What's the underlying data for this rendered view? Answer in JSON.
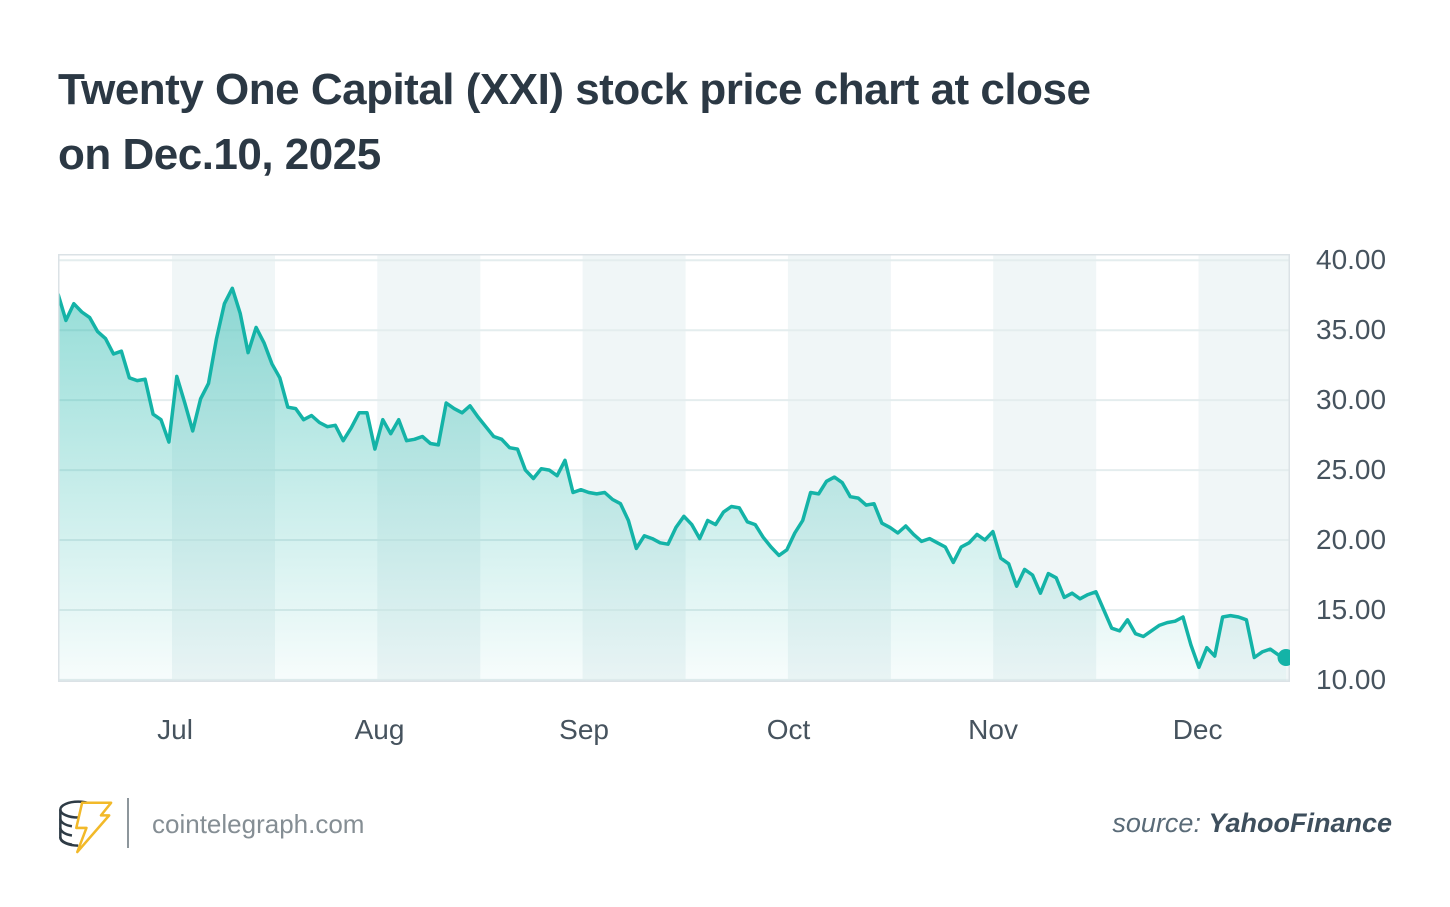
{
  "header": {
    "title_line1": "Twenty One Capital (XXI) stock price chart at close",
    "title_line2": "on Dec.10, 2025",
    "title_color": "#2b3844"
  },
  "chart_data": {
    "type": "area",
    "title": "Twenty One Capital (XXI) stock price chart at close on Dec.10, 2025",
    "xlabel": "",
    "ylabel": "",
    "frequency": "daily close price, late Jun 2025 to Dec 10, 2025",
    "x_ticks": [
      "Jul",
      "Aug",
      "Sep",
      "Oct",
      "Nov",
      "Dec"
    ],
    "y_ticks": [
      "40.00",
      "35.00",
      "30.00",
      "25.00",
      "20.00",
      "15.00",
      "10.00"
    ],
    "y_gridline_values": [
      40,
      35,
      30,
      25,
      20,
      15,
      10
    ],
    "ylim": [
      9.85,
      40.45
    ],
    "grid": "horizontal gridlines with alternating half-month vertical bands",
    "legend_position": "none",
    "end_dot": true,
    "last_value": 11.6,
    "values": [
      37.6,
      35.7,
      36.9,
      36.3,
      35.9,
      34.9,
      34.4,
      33.3,
      33.5,
      31.6,
      31.4,
      31.5,
      29.0,
      28.6,
      27.0,
      31.7,
      29.8,
      27.8,
      30.1,
      31.2,
      34.4,
      36.9,
      38.0,
      36.2,
      33.4,
      35.2,
      34.1,
      32.6,
      31.6,
      29.5,
      29.4,
      28.6,
      28.9,
      28.4,
      28.1,
      28.2,
      27.1,
      28.0,
      29.1,
      29.1,
      26.5,
      28.6,
      27.6,
      28.6,
      27.1,
      27.2,
      27.4,
      26.9,
      26.8,
      29.8,
      29.4,
      29.1,
      29.6,
      28.8,
      28.1,
      27.4,
      27.2,
      26.6,
      26.5,
      25.0,
      24.4,
      25.1,
      25.0,
      24.6,
      25.7,
      23.4,
      23.6,
      23.4,
      23.3,
      23.4,
      22.9,
      22.6,
      21.4,
      19.4,
      20.3,
      20.1,
      19.8,
      19.7,
      20.9,
      21.7,
      21.1,
      20.1,
      21.4,
      21.1,
      22.0,
      22.4,
      22.3,
      21.3,
      21.1,
      20.2,
      19.5,
      18.9,
      19.3,
      20.5,
      21.4,
      23.4,
      23.3,
      24.2,
      24.5,
      24.1,
      23.1,
      23.0,
      22.5,
      22.6,
      21.2,
      20.9,
      20.5,
      21.0,
      20.4,
      19.9,
      20.1,
      19.8,
      19.5,
      18.4,
      19.5,
      19.8,
      20.4,
      20.0,
      20.6,
      18.7,
      18.3,
      16.7,
      17.9,
      17.5,
      16.2,
      17.6,
      17.3,
      15.9,
      16.2,
      15.8,
      16.1,
      16.3,
      15.0,
      13.7,
      13.5,
      14.3,
      13.3,
      13.1,
      13.5,
      13.9,
      14.1,
      14.2,
      14.5,
      12.5,
      10.9,
      12.3,
      11.7,
      14.5,
      14.6,
      14.5,
      14.3,
      11.6,
      12.0,
      12.2,
      11.8,
      11.6
    ],
    "colors": {
      "line": "#14b3a7",
      "end_dot": "#14b3a7",
      "area_top": "rgba(20,179,167,0.45)",
      "area_bottom": "rgba(20,179,167,0.03)",
      "stripe_band": "#f0f6f7",
      "gridline": "#e4edee",
      "plot_border": "#dbe2e6",
      "tick_label": "#46535e"
    }
  },
  "footer": {
    "logo_icon": "cointelegraph-coin-bolt-logo",
    "logo_colors": {
      "coin_outline": "#2e3b45",
      "bolt": "#f2b929"
    },
    "site_url": "cointelegraph.com",
    "source_label": "source:",
    "source_name": "YahooFinance"
  }
}
